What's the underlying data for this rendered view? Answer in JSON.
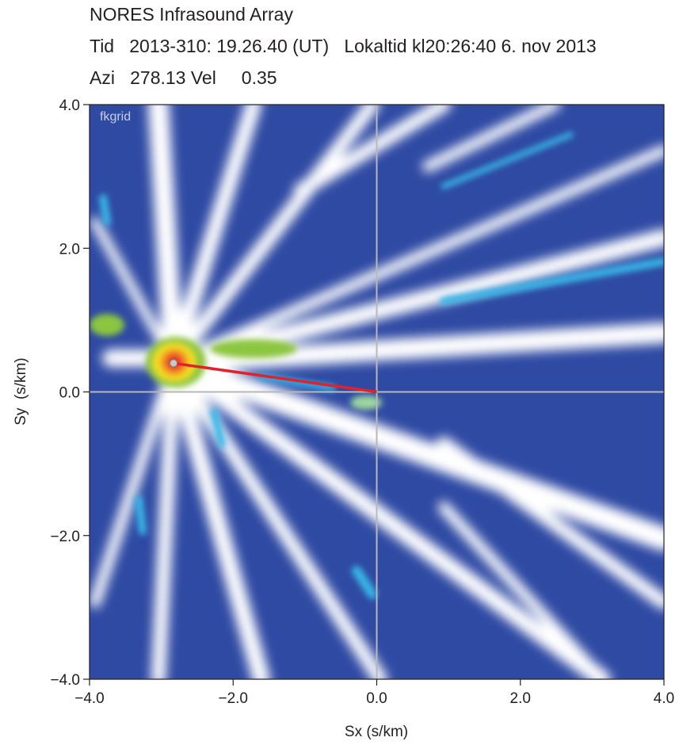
{
  "chart_data": {
    "type": "fk-grid",
    "title": "NORES Infrasound Array",
    "subtitle_lines": [
      "Tid   2013-310: 19.26.40 (UT)   Lokaltid kl20:26:40 6. nov 2013",
      "Azi   278.13 Vel     0.35"
    ],
    "annotation": "fkgrid",
    "x_label": "Sx (s/km)",
    "y_label": "Sy  (s/km)",
    "xlim": [
      -4,
      4
    ],
    "ylim": [
      -4,
      4
    ],
    "xticks": [
      {
        "value": -4,
        "label": "−4.0"
      },
      {
        "value": -2,
        "label": "−2.0"
      },
      {
        "value": 0,
        "label": "0.0"
      },
      {
        "value": 2,
        "label": "2.0"
      },
      {
        "value": 4,
        "label": "4.0"
      }
    ],
    "yticks": [
      {
        "value": -4,
        "label": "−4.0"
      },
      {
        "value": -2,
        "label": "−2.0"
      },
      {
        "value": 0,
        "label": "0.0"
      },
      {
        "value": 2,
        "label": "2.0"
      },
      {
        "value": 4,
        "label": "4.0"
      }
    ],
    "peak": {
      "x": -2.83,
      "y": 0.4
    },
    "vector_color": "#e3212b"
  }
}
